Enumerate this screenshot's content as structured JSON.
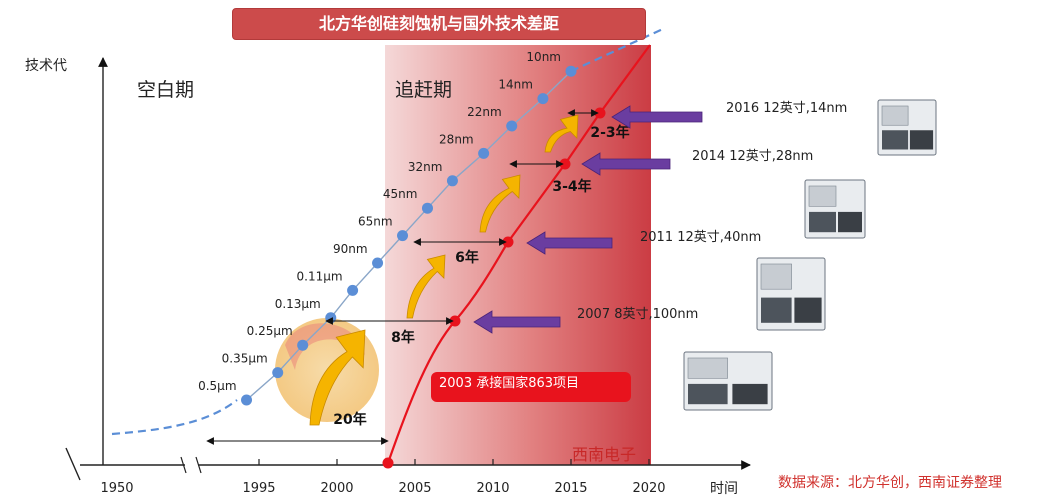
{
  "title": "北方华创硅刻蚀机与国外技术差距",
  "y_axis_label": "技术代",
  "x_axis_label": "时间",
  "phases": [
    "空白期",
    "追赶期"
  ],
  "annotation": "2003  承接国家863项目",
  "brand": "西南电子",
  "source": "数据来源：北方华创，西南证券整理",
  "colors": {
    "foreign": "#5b8ed6",
    "domestic": "#e8131d",
    "band": "#c8323a",
    "arrow_up": "#f5b400",
    "arrow_left": "#6a3da0"
  },
  "chart_data": {
    "type": "line",
    "x_ticks": [
      1950,
      1995,
      2000,
      2005,
      2010,
      2015,
      2020
    ],
    "series": [
      {
        "color": "#5b8ed6",
        "points": [
          {
            "x": 1994.2,
            "label": "0.5μm"
          },
          {
            "x": 1996.2,
            "label": "0.35μm"
          },
          {
            "x": 1997.8,
            "label": "0.25μm"
          },
          {
            "x": 1999.6,
            "label": "0.13μm"
          },
          {
            "x": 2001.0,
            "label": "0.11μm"
          },
          {
            "x": 2002.6,
            "label": "90nm"
          },
          {
            "x": 2004.2,
            "label": "65nm"
          },
          {
            "x": 2005.8,
            "label": "45nm"
          },
          {
            "x": 2007.4,
            "label": "32nm"
          },
          {
            "x": 2009.4,
            "label": "28nm"
          },
          {
            "x": 2011.2,
            "label": "22nm"
          },
          {
            "x": 2013.2,
            "label": "14nm"
          },
          {
            "x": 2015.0,
            "label": "10nm"
          }
        ]
      },
      {
        "color": "#e8131d",
        "points": [
          {
            "x": 2003.0,
            "label": "2003  承接国家863项目"
          },
          {
            "x": 2007.0,
            "label": "2007  8英寸,100nm"
          },
          {
            "x": 2011.0,
            "label": "2011  12英寸,40nm"
          },
          {
            "x": 2014.0,
            "label": "2014  12英寸,28nm"
          },
          {
            "x": 2016.0,
            "label": "2016  12英寸,14nm"
          }
        ]
      }
    ],
    "gaps": [
      "20年",
      "8年",
      "6年",
      "3-4年",
      "2-3年"
    ],
    "milestones": [
      "2016  12英寸,14nm",
      "2014  12英寸,28nm",
      "2011  12英寸,40nm",
      "2007  8英寸,100nm"
    ]
  }
}
